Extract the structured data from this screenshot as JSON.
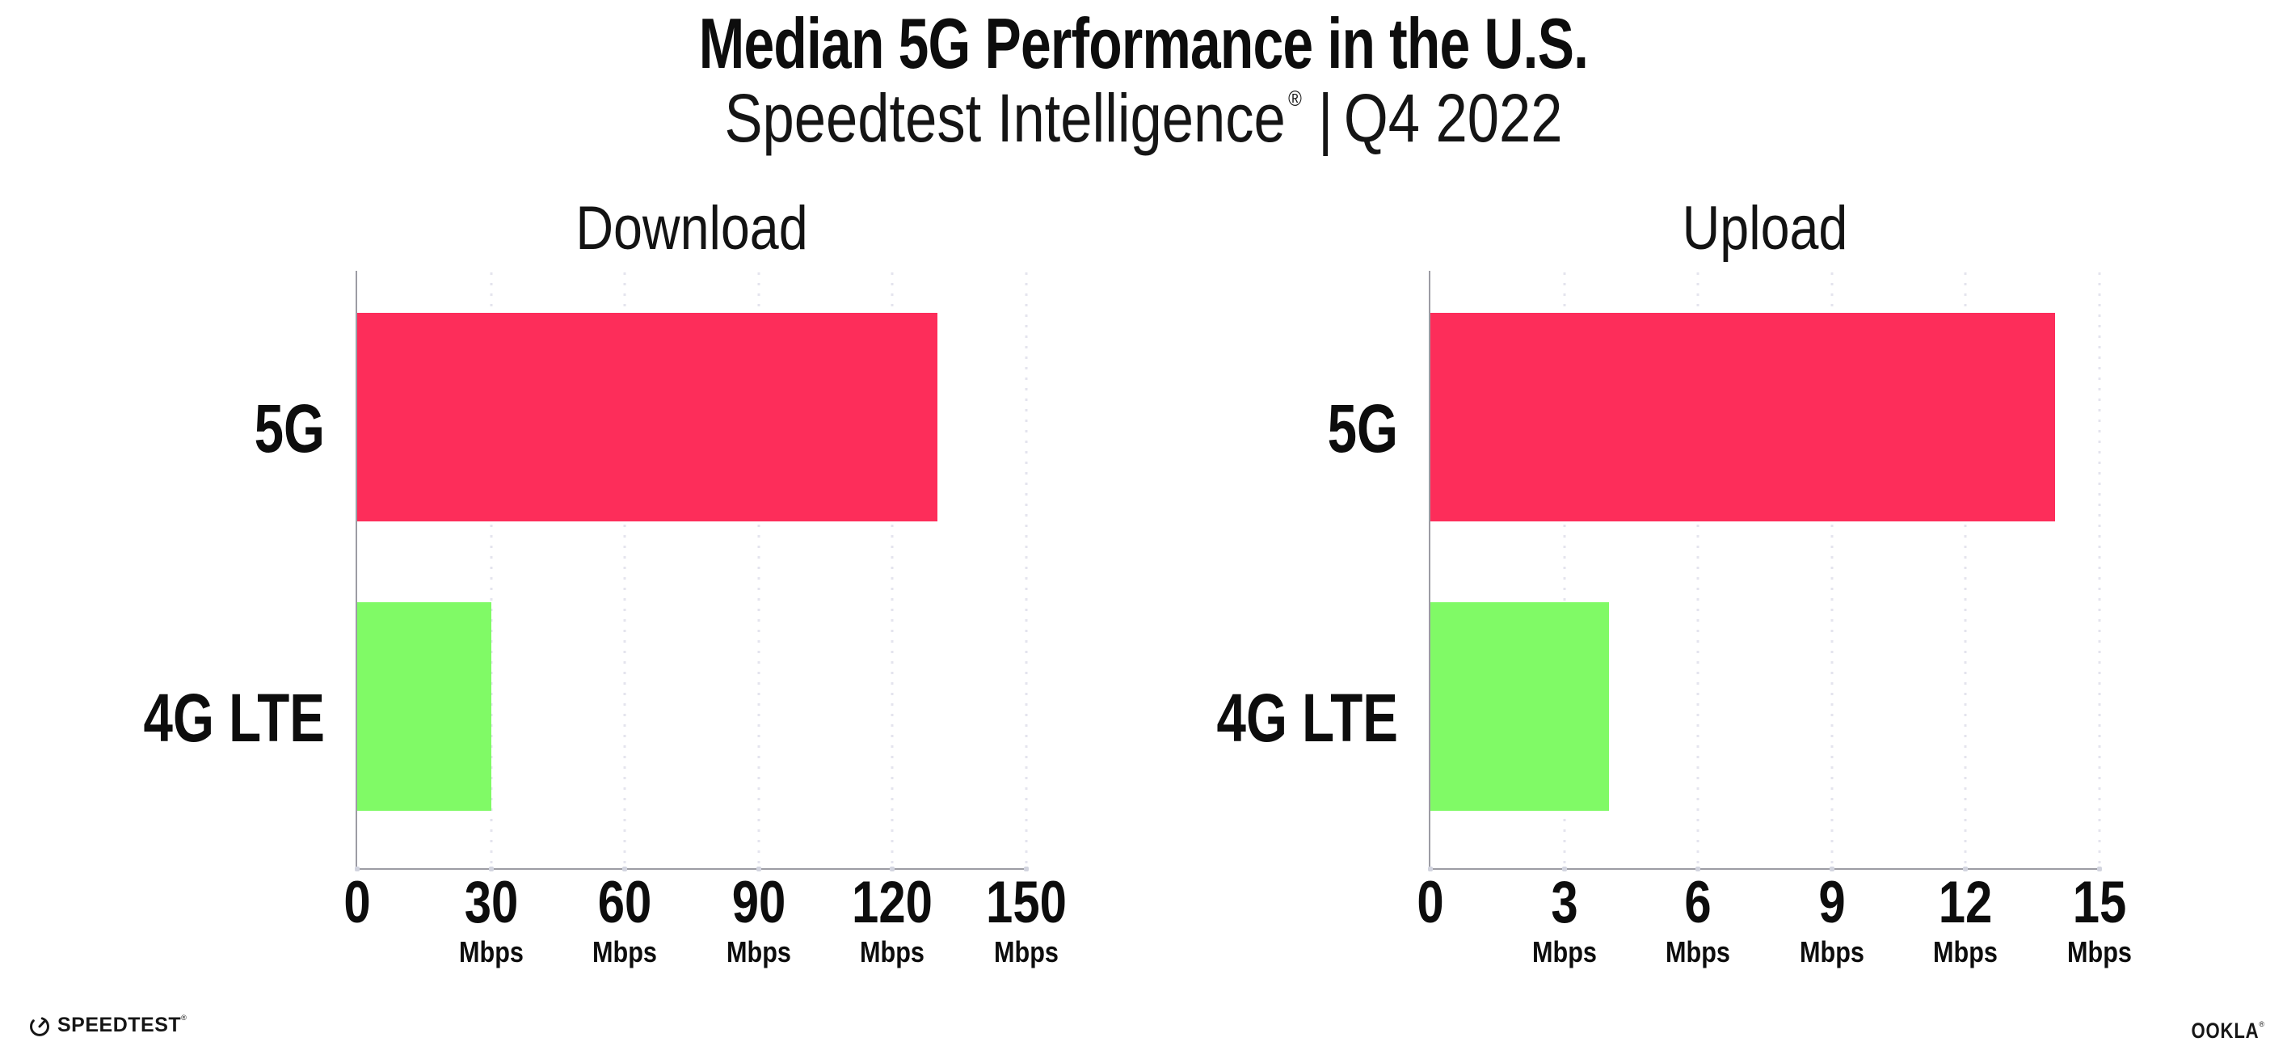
{
  "header": {
    "title": "Median 5G Performance in the U.S.",
    "subtitle_brand": "Speedtest Intelligence",
    "subtitle_reg": "®",
    "subtitle_separator": "|",
    "subtitle_period": "Q4 2022"
  },
  "chart_data": [
    {
      "type": "bar",
      "orientation": "horizontal",
      "title": "Download",
      "categories": [
        "5G",
        "4G LTE"
      ],
      "values": [
        130,
        30
      ],
      "unit": "Mbps",
      "xlim": [
        0,
        150
      ],
      "xticks": [
        0,
        30,
        60,
        90,
        120,
        150
      ],
      "bar_colors": [
        "#FD2D5A",
        "#80FA66"
      ],
      "grid": "vertical-dotted",
      "legend": "none"
    },
    {
      "type": "bar",
      "orientation": "horizontal",
      "title": "Upload",
      "categories": [
        "5G",
        "4G LTE"
      ],
      "values": [
        14,
        4
      ],
      "unit": "Mbps",
      "xlim": [
        0,
        15
      ],
      "xticks": [
        0,
        3,
        6,
        9,
        12,
        15
      ],
      "bar_colors": [
        "#FD2D5A",
        "#80FA66"
      ],
      "grid": "vertical-dotted",
      "legend": "none"
    }
  ],
  "footer": {
    "speedtest_label": "SPEEDTEST",
    "speedtest_reg": "®",
    "ookla_label": "OOKLA",
    "ookla_reg": "®"
  },
  "colors": {
    "bar_5g": "#FD2D5A",
    "bar_4g_lte": "#80FA66",
    "axis": "#9C9CA4",
    "grid_dot": "#E4E4EE",
    "tick_dot": "#D2D4DF",
    "text": "#0D0D0D",
    "background": "#FFFFFF"
  }
}
